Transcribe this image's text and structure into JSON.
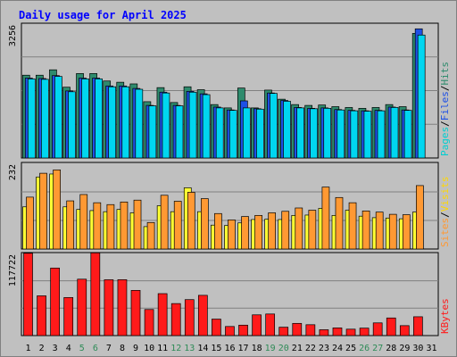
{
  "chart_data": {
    "type": "bar",
    "title": "Daily usage for April 2025",
    "categories": [
      "1",
      "2",
      "3",
      "4",
      "5",
      "6",
      "7",
      "8",
      "9",
      "10",
      "11",
      "12",
      "13",
      "14",
      "15",
      "16",
      "17",
      "18",
      "19",
      "20",
      "21",
      "22",
      "23",
      "24",
      "25",
      "26",
      "27",
      "28",
      "29",
      "30",
      "31"
    ],
    "weekend_days": [
      "5",
      "6",
      "12",
      "13",
      "19",
      "20",
      "26",
      "27"
    ],
    "panels": [
      {
        "id": "top",
        "max_label": "3256",
        "ylim": [
          0,
          3256
        ],
        "legend": [
          "Pages",
          "/",
          "Files",
          "/",
          "Hits"
        ],
        "series": [
          {
            "name": "Hits",
            "color": "#2e8b6d",
            "values": [
              2000,
              2000,
              2130,
              1710,
              2040,
              2040,
              1860,
              1830,
              1790,
              1360,
              1700,
              1340,
              1720,
              1650,
              1290,
              1210,
              1690,
              1210,
              1640,
              1420,
              1290,
              1270,
              1280,
              1240,
              1220,
              1200,
              1220,
              1290,
              1240,
              3010,
              0
            ]
          },
          {
            "name": "Files",
            "color": "#1e50e6",
            "values": [
              1930,
              1920,
              1990,
              1620,
              1930,
              1930,
              1740,
              1740,
              1680,
              1270,
              1590,
              1270,
              1610,
              1550,
              1230,
              1160,
              1380,
              1190,
              1570,
              1390,
              1220,
              1200,
              1210,
              1170,
              1150,
              1140,
              1150,
              1230,
              1160,
              3120,
              0
            ]
          },
          {
            "name": "Pages",
            "color": "#00d6f0",
            "values": [
              1910,
              1900,
              1970,
              1600,
              1910,
              1910,
              1720,
              1720,
              1660,
              1260,
              1570,
              1260,
              1590,
              1530,
              1210,
              1150,
              1210,
              1180,
              1560,
              1370,
              1210,
              1190,
              1200,
              1160,
              1140,
              1130,
              1140,
              1220,
              1150,
              2970,
              0
            ]
          }
        ]
      },
      {
        "id": "middle",
        "max_label": "232",
        "ylim": [
          0,
          232
        ],
        "legend": [
          "Sites",
          "/",
          "Visits"
        ],
        "series": [
          {
            "name": "Sites",
            "color": "#ffff33",
            "values": [
              113,
              193,
              201,
              113,
              106,
              103,
              100,
              106,
              97,
              60,
              116,
              100,
              164,
              100,
              64,
              63,
              70,
              79,
              80,
              79,
              90,
              91,
              109,
              90,
              104,
              88,
              84,
              83,
              81,
              99,
              0
            ]
          },
          {
            "name": "Visits",
            "color": "#ff9933",
            "values": [
              139,
              203,
              212,
              129,
              146,
              124,
              119,
              126,
              131,
              71,
              144,
              128,
              152,
              135,
              95,
              78,
              87,
              90,
              97,
              101,
              110,
              104,
              166,
              138,
              124,
              102,
              99,
              93,
              92,
              170,
              0
            ]
          }
        ]
      },
      {
        "id": "bottom",
        "max_label": "117722",
        "ylim": [
          0,
          117722
        ],
        "legend": [
          "KBytes"
        ],
        "series": [
          {
            "name": "KBytes",
            "color": "#ff1a1a",
            "values": [
              116800,
              56400,
              95800,
              54000,
              80000,
              117300,
              79200,
              79300,
              64100,
              37000,
              59500,
              45400,
              51000,
              57100,
              23400,
              12900,
              14800,
              29400,
              30600,
              11900,
              17300,
              15400,
              8300,
              10900,
              9100,
              10600,
              18000,
              25000,
              14100,
              26700,
              0
            ]
          }
        ]
      }
    ],
    "colors": {
      "panel_bg": "#c0c0c0",
      "gridline": "#808080",
      "title": "#0000ff",
      "weekday_label": "#000000",
      "weekend_label": "#2e8b57",
      "legend_slash": "#000000",
      "legend_pages": "#00ced1",
      "legend_files": "#1e50e6",
      "legend_hits": "#2e8b6d",
      "legend_sites": "#ff9933",
      "legend_visits": "#ffd700",
      "legend_kbytes": "#ff1a1a"
    }
  }
}
